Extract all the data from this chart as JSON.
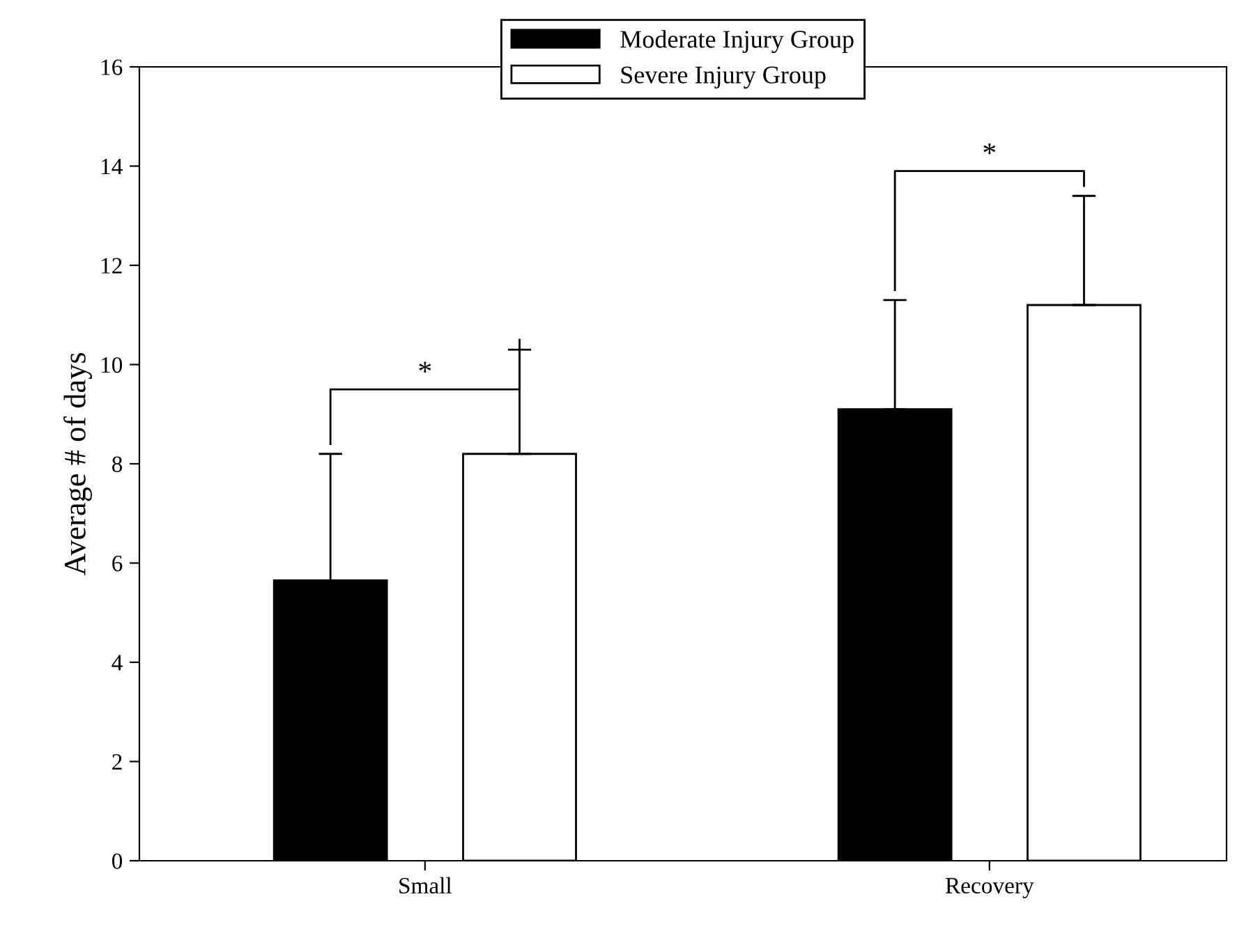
{
  "chart_data": {
    "type": "bar",
    "ylabel": "Average # of days",
    "categories": [
      "Small",
      "Recovery"
    ],
    "series": [
      {
        "name": "Moderate Injury Group",
        "color": "#000000",
        "values": [
          5.65,
          9.1
        ],
        "errors": [
          [
            5.65,
            8.2
          ],
          [
            9.1,
            11.3
          ]
        ]
      },
      {
        "name": "Severe Injury Group",
        "color": "#ffffff",
        "values": [
          8.2,
          11.2
        ],
        "errors": [
          [
            8.2,
            10.3
          ],
          [
            11.2,
            13.4
          ]
        ]
      }
    ],
    "ylim": [
      0,
      16
    ],
    "yticks": [
      0,
      2,
      4,
      6,
      8,
      10,
      12,
      14,
      16
    ],
    "grid": false,
    "legend": "top",
    "annotations": [
      "*",
      "*"
    ]
  }
}
